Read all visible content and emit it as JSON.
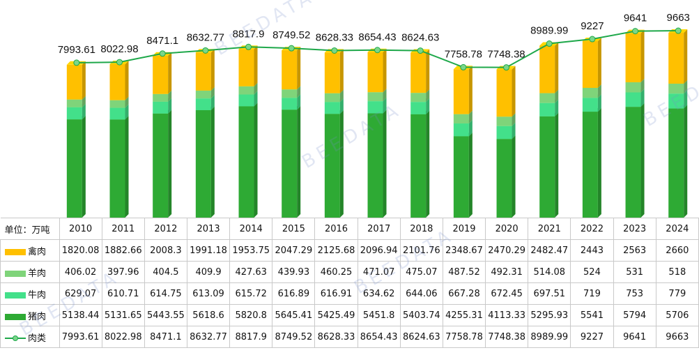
{
  "chart_data": {
    "type": "bar",
    "stacked": true,
    "unit_label": "单位：万吨",
    "categories": [
      "2010",
      "2011",
      "2012",
      "2013",
      "2014",
      "2015",
      "2016",
      "2017",
      "2018",
      "2019",
      "2020",
      "2021",
      "2022",
      "2023",
      "2024"
    ],
    "series": [
      {
        "name": "猪肉",
        "color": "#2eaa34",
        "values": [
          5138.44,
          5131.65,
          5443.55,
          5618.6,
          5820.8,
          5645.41,
          5425.49,
          5451.8,
          5403.74,
          4255.31,
          4113.33,
          5295.93,
          5541,
          5794,
          5706
        ]
      },
      {
        "name": "牛肉",
        "color": "#43e08a",
        "values": [
          629.07,
          610.71,
          614.75,
          613.09,
          615.72,
          616.89,
          616.91,
          634.62,
          644.06,
          667.28,
          672.45,
          697.51,
          719,
          753,
          779
        ]
      },
      {
        "name": "羊肉",
        "color": "#7fd47a",
        "values": [
          406.02,
          397.96,
          404.5,
          409.9,
          427.63,
          439.93,
          460.25,
          471.07,
          475.07,
          487.52,
          492.31,
          514.08,
          524,
          531,
          518
        ]
      },
      {
        "name": "禽肉",
        "color": "#ffc000",
        "values": [
          1820.08,
          1882.66,
          2008.3,
          1991.18,
          1953.75,
          2047.29,
          2125.68,
          2096.94,
          2101.76,
          2348.67,
          2470.29,
          2482.47,
          2443,
          2563,
          2660
        ]
      }
    ],
    "line": {
      "name": "肉类",
      "color": "#1ea84a",
      "values": [
        7993.61,
        8022.98,
        8471.1,
        8632.77,
        8817.9,
        8749.52,
        8628.33,
        8654.43,
        8624.63,
        7758.78,
        7748.38,
        8989.99,
        9227,
        9641,
        9663
      ],
      "labels": [
        "7993.61",
        "8022.98",
        "8471.1",
        "8632.77",
        "8817.9",
        "8749.52",
        "8628.33",
        "8654.43",
        "8624.63",
        "7758.78",
        "7748.38",
        "8989.99",
        "9227",
        "9641",
        "9663"
      ]
    },
    "table_rows": [
      {
        "label": "禽肉",
        "legend": "bar",
        "color": "#ffc000",
        "cells": [
          "1820.08",
          "1882.66",
          "2008.3",
          "1991.18",
          "1953.75",
          "2047.29",
          "2125.68",
          "2096.94",
          "2101.76",
          "2348.67",
          "2470.29",
          "2482.47",
          "2443",
          "2563",
          "2660"
        ]
      },
      {
        "label": "羊肉",
        "legend": "bar",
        "color": "#7fd47a",
        "cells": [
          "406.02",
          "397.96",
          "404.5",
          "409.9",
          "427.63",
          "439.93",
          "460.25",
          "471.07",
          "475.07",
          "487.52",
          "492.31",
          "514.08",
          "524",
          "531",
          "518"
        ]
      },
      {
        "label": "牛肉",
        "legend": "bar",
        "color": "#43e08a",
        "cells": [
          "629.07",
          "610.71",
          "614.75",
          "613.09",
          "615.72",
          "616.89",
          "616.91",
          "634.62",
          "644.06",
          "667.28",
          "672.45",
          "697.51",
          "719",
          "753",
          "779"
        ]
      },
      {
        "label": "猪肉",
        "legend": "bar",
        "color": "#2eaa34",
        "cells": [
          "5138.44",
          "5131.65",
          "5443.55",
          "5618.6",
          "5820.8",
          "5645.41",
          "5425.49",
          "5451.8",
          "5403.74",
          "4255.31",
          "4113.33",
          "5295.93",
          "5541",
          "5794",
          "5706"
        ]
      },
      {
        "label": "肉类",
        "legend": "line",
        "color": "#1ea84a",
        "cells": [
          "7993.61",
          "8022.98",
          "8471.1",
          "8632.77",
          "8817.9",
          "8749.52",
          "8628.33",
          "8654.43",
          "8624.63",
          "7758.78",
          "7748.38",
          "8989.99",
          "9227",
          "9641",
          "9663"
        ]
      }
    ]
  },
  "watermarks": [
    "BEEDATA",
    "BEEDATA",
    "BEEDATA",
    "BEEDATA",
    "BEEDATA"
  ]
}
